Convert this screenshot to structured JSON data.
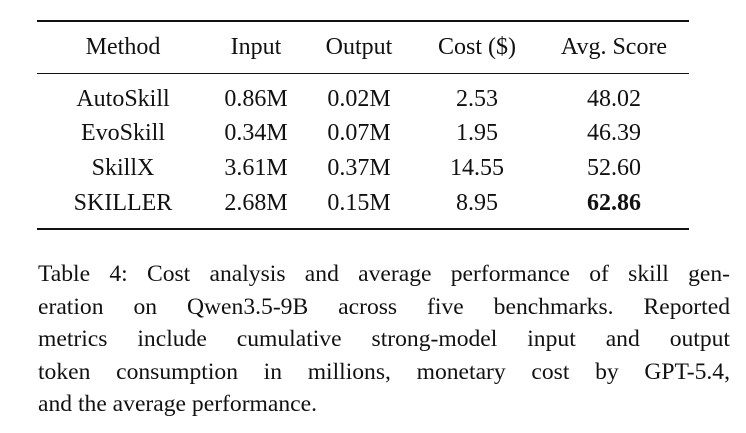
{
  "table": {
    "headers": [
      "Method",
      "Input",
      "Output",
      "Cost ($)",
      "Avg. Score"
    ],
    "rows": [
      {
        "method": "AutoSkill",
        "input": "0.86M",
        "output": "0.02M",
        "cost": "2.53",
        "score": "48.02"
      },
      {
        "method": "EvoSkill",
        "input": "0.34M",
        "output": "0.07M",
        "cost": "1.95",
        "score": "46.39"
      },
      {
        "method": "SkillX",
        "input": "3.61M",
        "output": "0.37M",
        "cost": "14.55",
        "score": "52.60"
      },
      {
        "method": "SKILLER",
        "input": "2.68M",
        "output": "0.15M",
        "cost": "8.95",
        "score": "62.86"
      }
    ],
    "best_score_row": 3
  },
  "caption": {
    "lines": [
      "Table 4: Cost analysis and average performance of skill gen-",
      "eration on Qwen3.5-9B across five benchmarks. Reported",
      "metrics include cumulative strong-model input and output",
      "token consumption in millions, monetary cost by GPT-5.4,",
      "and the average performance."
    ]
  }
}
